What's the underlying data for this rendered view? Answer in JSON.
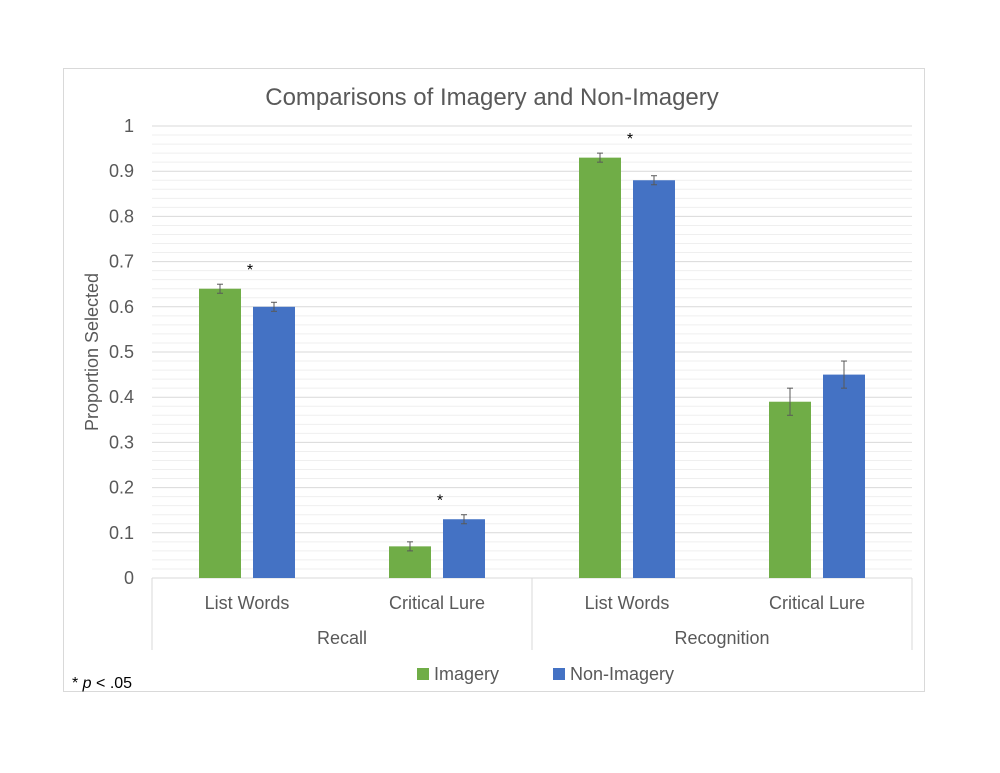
{
  "chart_data": {
    "type": "bar",
    "title": "Comparisons of Imagery and Non-Imagery",
    "ylabel": "Proportion Selected",
    "xlabel": "",
    "ylim": [
      0,
      1
    ],
    "y_ticks": [
      "0",
      "0.1",
      "0.2",
      "0.3",
      "0.4",
      "0.5",
      "0.6",
      "0.7",
      "0.8",
      "0.9",
      "1"
    ],
    "groups": [
      {
        "name": "Recall",
        "categories": [
          "List Words",
          "Critical Lure"
        ]
      },
      {
        "name": "Recognition",
        "categories": [
          "List Words",
          "Critical Lure"
        ]
      }
    ],
    "categories": [
      "List Words",
      "Critical Lure",
      "List Words",
      "Critical Lure"
    ],
    "series": [
      {
        "name": "Imagery",
        "color": "#70ad47",
        "values": [
          0.64,
          0.07,
          0.93,
          0.39
        ],
        "errors": [
          0.01,
          0.01,
          0.01,
          0.03
        ]
      },
      {
        "name": "Non-Imagery",
        "color": "#4472c4",
        "values": [
          0.6,
          0.13,
          0.88,
          0.45
        ],
        "errors": [
          0.01,
          0.01,
          0.01,
          0.03
        ]
      }
    ],
    "significance_marker": "*",
    "significant_categories": [
      0,
      1,
      2
    ],
    "footnote": {
      "prefix": "* ",
      "variable": "p",
      "suffix": " < .05"
    },
    "grid": true,
    "legend_position": "bottom"
  }
}
